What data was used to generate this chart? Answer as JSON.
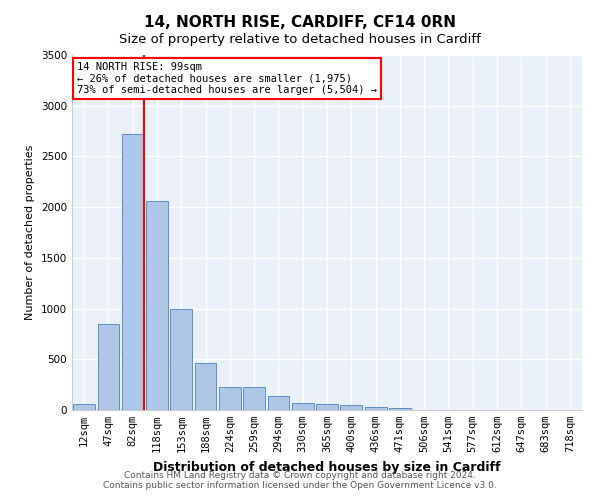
{
  "title": "14, NORTH RISE, CARDIFF, CF14 0RN",
  "subtitle": "Size of property relative to detached houses in Cardiff",
  "xlabel": "Distribution of detached houses by size in Cardiff",
  "ylabel": "Number of detached properties",
  "categories": [
    "12sqm",
    "47sqm",
    "82sqm",
    "118sqm",
    "153sqm",
    "188sqm",
    "224sqm",
    "259sqm",
    "294sqm",
    "330sqm",
    "365sqm",
    "400sqm",
    "436sqm",
    "471sqm",
    "506sqm",
    "541sqm",
    "577sqm",
    "612sqm",
    "647sqm",
    "683sqm",
    "718sqm"
  ],
  "values": [
    60,
    850,
    2720,
    2060,
    1000,
    460,
    230,
    225,
    140,
    70,
    55,
    50,
    30,
    20,
    0,
    0,
    0,
    0,
    0,
    0,
    0
  ],
  "bar_color": "#aec6e8",
  "bar_edge_color": "#5a8fc0",
  "vline_color": "red",
  "vline_pos": 2.45,
  "annotation_text": "14 NORTH RISE: 99sqm\n← 26% of detached houses are smaller (1,975)\n73% of semi-detached houses are larger (5,504) →",
  "annotation_box_color": "white",
  "annotation_box_edge_color": "red",
  "ylim": [
    0,
    3500
  ],
  "yticks": [
    0,
    500,
    1000,
    1500,
    2000,
    2500,
    3000,
    3500
  ],
  "bg_color": "#eaf0f8",
  "grid_color": "white",
  "footnote": "Contains HM Land Registry data © Crown copyright and database right 2024.\nContains public sector information licensed under the Open Government Licence v3.0.",
  "title_fontsize": 11,
  "subtitle_fontsize": 9.5,
  "xlabel_fontsize": 9,
  "ylabel_fontsize": 8,
  "tick_fontsize": 7.5,
  "annot_fontsize": 7.5,
  "footnote_fontsize": 6.5
}
